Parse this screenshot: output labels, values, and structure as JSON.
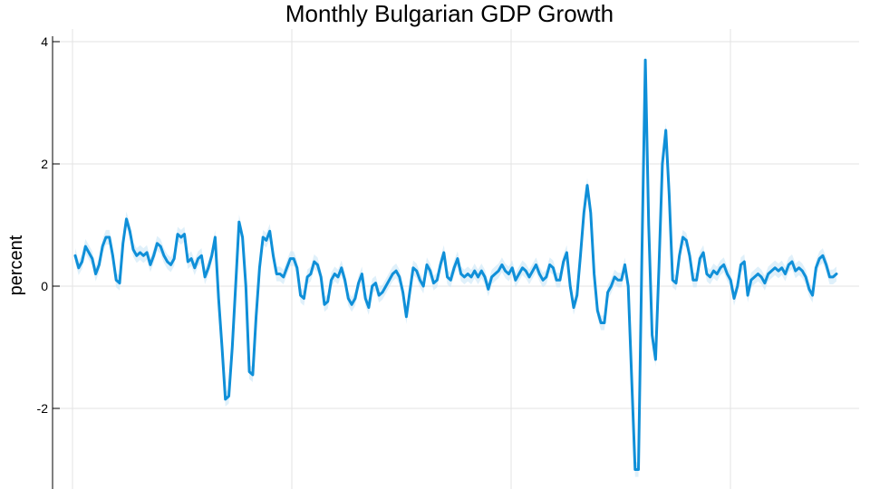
{
  "chart_data": {
    "type": "line",
    "title": "Monthly Bulgarian GDP Growth",
    "xlabel": "",
    "ylabel": "percent",
    "ylim": [
      -3.3,
      4.1
    ],
    "yticks": [
      -2,
      0,
      2,
      4
    ],
    "ytick_labels": [
      "-2",
      "0",
      "2",
      "4"
    ],
    "grid": true,
    "x_tick_labels_visible": false,
    "line_color": "#0f8fd8",
    "band_color": "#c9e6f7",
    "series": [
      {
        "values": [
          0.5,
          0.3,
          0.4,
          0.65,
          0.55,
          0.45,
          0.2,
          0.35,
          0.65,
          0.8,
          0.8,
          0.5,
          0.1,
          0.05,
          0.7,
          1.1,
          0.9,
          0.6,
          0.5,
          0.55,
          0.5,
          0.55,
          0.35,
          0.5,
          0.7,
          0.65,
          0.5,
          0.4,
          0.35,
          0.45,
          0.85,
          0.8,
          0.85,
          0.4,
          0.45,
          0.3,
          0.45,
          0.5,
          0.15,
          0.3,
          0.5,
          0.8,
          -0.2,
          -1.0,
          -1.85,
          -1.8,
          -1.0,
          0.0,
          1.05,
          0.8,
          0.0,
          -1.4,
          -1.45,
          -0.5,
          0.3,
          0.8,
          0.75,
          0.9,
          0.5,
          0.2,
          0.2,
          0.15,
          0.3,
          0.45,
          0.45,
          0.3,
          -0.15,
          -0.2,
          0.15,
          0.2,
          0.4,
          0.35,
          0.15,
          -0.3,
          -0.25,
          0.1,
          0.2,
          0.15,
          0.3,
          0.1,
          -0.2,
          -0.3,
          -0.2,
          0.05,
          0.2,
          -0.2,
          -0.35,
          0.0,
          0.05,
          -0.15,
          -0.1,
          0.0,
          0.1,
          0.2,
          0.25,
          0.15,
          -0.1,
          -0.5,
          -0.1,
          0.3,
          0.25,
          0.1,
          0.0,
          0.35,
          0.25,
          0.05,
          0.1,
          0.35,
          0.55,
          0.15,
          0.1,
          0.3,
          0.45,
          0.2,
          0.15,
          0.2,
          0.15,
          0.25,
          0.15,
          0.25,
          0.15,
          -0.05,
          0.15,
          0.2,
          0.25,
          0.35,
          0.25,
          0.2,
          0.3,
          0.1,
          0.2,
          0.3,
          0.25,
          0.15,
          0.25,
          0.35,
          0.2,
          0.1,
          0.15,
          0.35,
          0.3,
          0.1,
          0.1,
          0.4,
          0.55,
          0.0,
          -0.35,
          -0.15,
          0.5,
          1.2,
          1.65,
          1.2,
          0.2,
          -0.4,
          -0.6,
          -0.6,
          -0.1,
          0.0,
          0.15,
          0.1,
          0.1,
          0.35,
          0.0,
          -1.5,
          -3.0,
          -3.0,
          0.5,
          3.7,
          1.0,
          -0.8,
          -1.2,
          0.3,
          2.0,
          2.55,
          1.5,
          0.1,
          0.05,
          0.5,
          0.8,
          0.75,
          0.5,
          0.1,
          0.1,
          0.45,
          0.55,
          0.2,
          0.15,
          0.25,
          0.2,
          0.3,
          0.35,
          0.2,
          0.1,
          -0.2,
          0.0,
          0.35,
          0.4,
          -0.15,
          0.1,
          0.15,
          0.2,
          0.15,
          0.05,
          0.2,
          0.25,
          0.3,
          0.25,
          0.3,
          0.2,
          0.35,
          0.4,
          0.25,
          0.3,
          0.25,
          0.15,
          -0.05,
          -0.15,
          0.3,
          0.45,
          0.5,
          0.35,
          0.15,
          0.15,
          0.2
        ]
      }
    ]
  }
}
